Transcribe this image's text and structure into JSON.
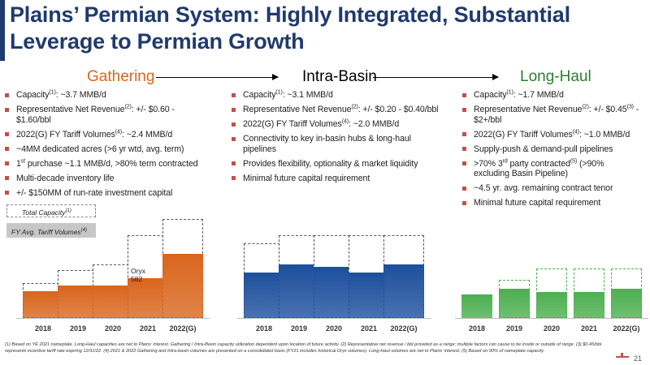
{
  "title": "Plains’ Permian System: Highly Integrated, Substantial Leverage to Permian Growth",
  "columns": [
    {
      "heading": "Gathering",
      "heading_color": "#d9651c",
      "bullets": [
        [
          "Capacity",
          "(1)",
          ": ~3.7 MMB/d"
        ],
        [
          "Representative Net Revenue",
          "(2)",
          ": +/- $0.60 - $1.60/bbl"
        ],
        [
          "2022(G) FY Tariff Volumes",
          "(4)",
          ": ~2.4 MMB/d"
        ],
        [
          "~4MM dedicated acres (>6 yr wtd, avg. term)",
          "",
          ""
        ],
        [
          "1",
          "st",
          " purchase ~1.1 MMB/d, >80% term contracted"
        ],
        [
          "Multi-decade inventory life",
          "",
          ""
        ],
        [
          "+/- $150MM of run-rate investment capital",
          "",
          ""
        ]
      ]
    },
    {
      "heading": "Intra-Basin",
      "heading_color": "#000000",
      "bullets": [
        [
          "Capacity",
          "(1)",
          ": ~3.1 MMB/d"
        ],
        [
          "Representative Net Revenue",
          "(2)",
          ": +/- $0.20 - $0.40/bbl"
        ],
        [
          "2022(G) FY Tariff Volumes",
          "(4)",
          ": ~2.0 MMB/d"
        ],
        [
          "Connectivity to key in-basin hubs & long-haul pipelines",
          "",
          ""
        ],
        [
          "Provides flexibility, optionality & market liquidity",
          "",
          ""
        ],
        [
          "Minimal future capital requirement",
          "",
          ""
        ]
      ]
    },
    {
      "heading": "Long-Haul",
      "heading_color": "#2e7d32",
      "bullets": [
        [
          "Capacity",
          "(1)",
          ": ~1.7 MMB/d"
        ],
        [
          "Representative Net Revenue",
          "(2)",
          ": +/- $0.45",
          "(3)",
          " - $2+/bbl"
        ],
        [
          "2022(G) FY Tariff Volumes",
          "(4)",
          ": ~1.0 MMB/d"
        ],
        [
          "Supply-push & demand-pull pipelines",
          "",
          ""
        ],
        [
          ">70% 3",
          "rd",
          " party contracted",
          "(5)",
          " (>90% excluding Basin Pipeline)"
        ],
        [
          "~4.5 yr. avg. remaining contract tenor",
          "",
          ""
        ],
        [
          "Minimal future capital requirement",
          "",
          ""
        ]
      ]
    }
  ],
  "legend": {
    "total_capacity": "Total Capacity",
    "total_capacity_sup": "(1)",
    "fy_volumes": "FY Avg. Tariff Volumes",
    "fy_volumes_sup": "(4)"
  },
  "chart_data": [
    {
      "type": "bar",
      "categories": [
        "2018",
        "2019",
        "2020",
        "2021",
        "2022(G)"
      ],
      "series": [
        {
          "name": "Total Capacity",
          "values": [
            1.3,
            1.8,
            2.0,
            3.1,
            3.7
          ]
        },
        {
          "name": "FY Avg. Tariff Volumes",
          "values": [
            1.0,
            1.2,
            1.2,
            1.5,
            2.4
          ]
        }
      ],
      "annotation": "Oryx 582",
      "colors": {
        "fill": "#d9651c",
        "outline": "#555555"
      }
    },
    {
      "type": "bar",
      "categories": [
        "2018",
        "2019",
        "2020",
        "2021",
        "2022(G)"
      ],
      "series": [
        {
          "name": "Total Capacity",
          "values": [
            2.8,
            3.1,
            3.1,
            3.1,
            3.1
          ]
        },
        {
          "name": "FY Avg. Tariff Volumes",
          "values": [
            1.7,
            2.0,
            1.9,
            1.7,
            2.0
          ]
        }
      ],
      "colors": {
        "fill": "#1c4f9c",
        "outline": "#555555"
      }
    },
    {
      "type": "bar",
      "categories": [
        "2018",
        "2019",
        "2020",
        "2021",
        "2022(G)"
      ],
      "series": [
        {
          "name": "Total Capacity",
          "values": [
            0.8,
            1.3,
            1.7,
            1.7,
            1.7
          ]
        },
        {
          "name": "FY Avg. Tariff Volumes",
          "values": [
            0.8,
            1.0,
            0.9,
            0.9,
            1.0
          ]
        }
      ],
      "colors": {
        "fill": "#4caf50",
        "outline": "#4caf50"
      }
    }
  ],
  "footnote": "(1) Based on YE 2021 nameplate. Long-Haul capacities are net to Plains’ interest. Gathering / Intra-Basin capacity utilization dependent upon location of future activity.  (2) Representative net revenue / bbl provided as a range; multiple factors can cause to be inside or outside of range. (3) $0.45/bbl represents incentive tariff rate expiring 12/31/22. (4) 2021 & 2022 Gathering and Intra-basin volumes are presented on a consolidated basis (FY21 includes historical Oryx volumes). Long-Haul volumes are net to Plains’ interest. (5) Based on 90% of nameplate capacity.",
  "page_number": "21"
}
